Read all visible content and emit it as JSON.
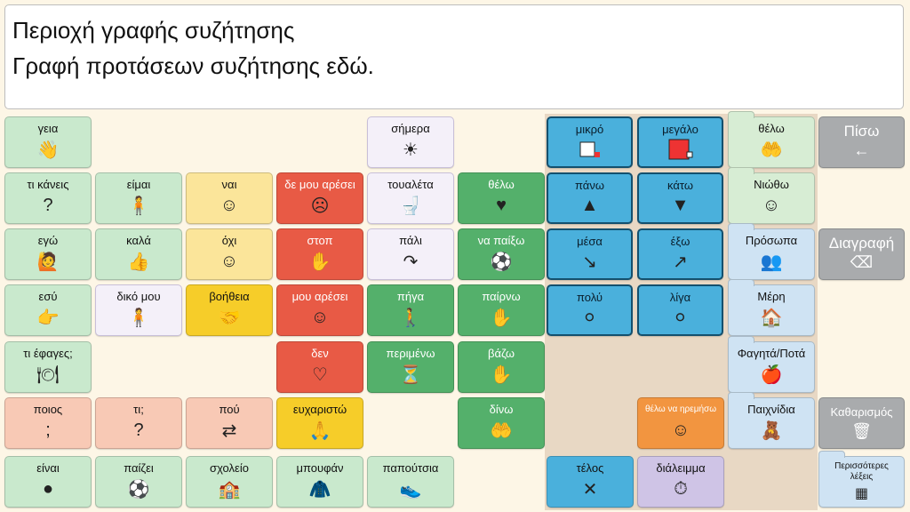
{
  "message_area": {
    "line1": "Περιοχή γραφής συζήτησης",
    "line2": "Γραφή προτάσεων συζήτησης εδώ."
  },
  "cells": [
    {
      "id": "geia",
      "label": "γεια",
      "color": "green-l",
      "icon": "wave-icon",
      "glyph": "👋",
      "col": 0,
      "row": 0
    },
    {
      "id": "simera",
      "label": "σήμερα",
      "color": "white",
      "icon": "sun-icon",
      "glyph": "☀",
      "col": 4,
      "row": 0
    },
    {
      "id": "mikro",
      "label": "μικρό",
      "color": "blue",
      "icon": "small-square-icon",
      "glyph": "■",
      "col": 6,
      "row": 0
    },
    {
      "id": "megalo",
      "label": "μεγάλο",
      "color": "blue",
      "icon": "big-square-icon",
      "glyph": "■",
      "col": 7,
      "row": 0
    },
    {
      "id": "thelo_folder",
      "label": "θέλω",
      "color": "folder-g",
      "icon": "want-icon",
      "glyph": "🤲",
      "col": 8,
      "row": 0,
      "folder": true
    },
    {
      "id": "ti_kaneis",
      "label": "τι κάνεις",
      "color": "green-l",
      "icon": "question-icon",
      "glyph": "?",
      "col": 0,
      "row": 1
    },
    {
      "id": "eimai",
      "label": "είμαι",
      "color": "green-l",
      "icon": "person-icon",
      "glyph": "🧍",
      "col": 1,
      "row": 1
    },
    {
      "id": "nai",
      "label": "ναι",
      "color": "yellow-l",
      "icon": "nod-yes-icon",
      "glyph": "☺",
      "col": 2,
      "row": 1
    },
    {
      "id": "de_mou_aresei",
      "label": "δε μου αρέσει",
      "color": "red",
      "icon": "dislike-face-icon",
      "glyph": "☹",
      "col": 3,
      "row": 1
    },
    {
      "id": "toualeta",
      "label": "τουαλέτα",
      "color": "white",
      "icon": "toilet-icon",
      "glyph": "🚽",
      "col": 4,
      "row": 1
    },
    {
      "id": "thelo",
      "label": "θέλω",
      "color": "green-d",
      "icon": "want-heart-icon",
      "glyph": "♥",
      "col": 5,
      "row": 1
    },
    {
      "id": "pano",
      "label": "πάνω",
      "color": "blue",
      "icon": "up-icon",
      "glyph": "▲",
      "col": 6,
      "row": 1
    },
    {
      "id": "kato",
      "label": "κάτω",
      "color": "blue",
      "icon": "down-icon",
      "glyph": "▼",
      "col": 7,
      "row": 1
    },
    {
      "id": "niotho",
      "label": "Νιώθω",
      "color": "folder-g",
      "icon": "feelings-icon",
      "glyph": "☺",
      "col": 8,
      "row": 1,
      "folder": true
    },
    {
      "id": "ego",
      "label": "εγώ",
      "color": "green-l",
      "icon": "me-icon",
      "glyph": "🙋",
      "col": 0,
      "row": 2
    },
    {
      "id": "kala",
      "label": "καλά",
      "color": "green-l",
      "icon": "thumbs-up-icon",
      "glyph": "👍",
      "col": 1,
      "row": 2
    },
    {
      "id": "ochi",
      "label": "όχι",
      "color": "yellow-l",
      "icon": "shake-no-icon",
      "glyph": "☺",
      "col": 2,
      "row": 2
    },
    {
      "id": "stop",
      "label": "στοπ",
      "color": "red",
      "icon": "stop-hand-icon",
      "glyph": "✋",
      "col": 3,
      "row": 2
    },
    {
      "id": "pali",
      "label": "πάλι",
      "color": "white",
      "icon": "again-arrow-icon",
      "glyph": "↷",
      "col": 4,
      "row": 2
    },
    {
      "id": "na_paixo",
      "label": "να παίξω",
      "color": "green-d",
      "icon": "play-icon",
      "glyph": "⚽",
      "col": 5,
      "row": 2
    },
    {
      "id": "mesa",
      "label": "μέσα",
      "color": "blue",
      "icon": "in-icon",
      "glyph": "↘",
      "col": 6,
      "row": 2
    },
    {
      "id": "exo",
      "label": "έξω",
      "color": "blue",
      "icon": "out-icon",
      "glyph": "↗",
      "col": 7,
      "row": 2
    },
    {
      "id": "prosopa",
      "label": "Πρόσωπα",
      "color": "folder-b",
      "icon": "people-icon",
      "glyph": "👥",
      "col": 8,
      "row": 2,
      "folder": true
    },
    {
      "id": "esy",
      "label": "εσύ",
      "color": "green-l",
      "icon": "you-icon",
      "glyph": "👉",
      "col": 0,
      "row": 3
    },
    {
      "id": "diko_mou",
      "label": "δικό μου",
      "color": "white",
      "icon": "mine-icon",
      "glyph": "🧍",
      "col": 1,
      "row": 3
    },
    {
      "id": "voitheia",
      "label": "βοήθεια",
      "color": "yellow-d",
      "icon": "help-icon",
      "glyph": "🤝",
      "col": 2,
      "row": 3
    },
    {
      "id": "mou_aresei",
      "label": "μου αρέσει",
      "color": "red",
      "icon": "like-face-icon",
      "glyph": "☺",
      "col": 3,
      "row": 3
    },
    {
      "id": "pigа",
      "label": "πήγα",
      "color": "green-d",
      "icon": "went-icon",
      "glyph": "🚶",
      "col": 4,
      "row": 3
    },
    {
      "id": "pairno",
      "label": "παίρνω",
      "color": "green-d",
      "icon": "take-icon",
      "glyph": "✋",
      "col": 5,
      "row": 3
    },
    {
      "id": "poly",
      "label": "πολύ",
      "color": "blue",
      "icon": "many-balls-icon",
      "glyph": "⚪",
      "col": 6,
      "row": 3
    },
    {
      "id": "liga",
      "label": "λίγα",
      "color": "blue",
      "icon": "few-balls-icon",
      "glyph": "⚪",
      "col": 7,
      "row": 3
    },
    {
      "id": "meri",
      "label": "Μέρη",
      "color": "folder-b",
      "icon": "places-icon",
      "glyph": "🏠",
      "col": 8,
      "row": 3,
      "folder": true
    },
    {
      "id": "ti_efages",
      "label": "τι έφαγες;",
      "color": "green-l",
      "icon": "eating-photo-icon",
      "glyph": "🍽",
      "col": 0,
      "row": 4
    },
    {
      "id": "den",
      "label": "δεν",
      "color": "red",
      "icon": "not-heart-icon",
      "glyph": "♡",
      "col": 3,
      "row": 4
    },
    {
      "id": "perimeno",
      "label": "περιμένω",
      "color": "green-d",
      "icon": "wait-icon",
      "glyph": "⏳",
      "col": 4,
      "row": 4
    },
    {
      "id": "vazo",
      "label": "βάζω",
      "color": "green-d",
      "icon": "put-icon",
      "glyph": "✋",
      "col": 5,
      "row": 4
    },
    {
      "id": "fagita",
      "label": "Φαγητά/Ποτά",
      "color": "folder-b",
      "icon": "food-icon",
      "glyph": "🍎",
      "col": 8,
      "row": 4,
      "folder": true
    },
    {
      "id": "poios",
      "label": "ποιος",
      "color": "salmon",
      "icon": "who-icon",
      "glyph": ";",
      "col": 0,
      "row": 5
    },
    {
      "id": "ti",
      "label": "τι;",
      "color": "salmon",
      "icon": "what-icon",
      "glyph": "?",
      "col": 1,
      "row": 5
    },
    {
      "id": "pou",
      "label": "πού",
      "color": "salmon",
      "icon": "where-sign-icon",
      "glyph": "⇄",
      "col": 2,
      "row": 5
    },
    {
      "id": "efcharisto",
      "label": "ευχαριστώ",
      "color": "yellow-d",
      "icon": "thanks-icon",
      "glyph": "🙏",
      "col": 3,
      "row": 5
    },
    {
      "id": "dino",
      "label": "δίνω",
      "color": "green-d",
      "icon": "give-icon",
      "glyph": "🤲",
      "col": 5,
      "row": 5
    },
    {
      "id": "thelo_na_iremiso",
      "label": "θέλω να ηρεμήσω",
      "color": "orange",
      "icon": "calm-face-icon",
      "glyph": "☺",
      "col": 7,
      "row": 5
    },
    {
      "id": "paichnidia",
      "label": "Παιχνίδια",
      "color": "folder-b",
      "icon": "toys-icon",
      "glyph": "🧸",
      "col": 8,
      "row": 5,
      "folder": true
    },
    {
      "id": "einai",
      "label": "είναι",
      "color": "green-l",
      "icon": "is-icon",
      "glyph": "●",
      "col": 0,
      "row": 6
    },
    {
      "id": "paizei",
      "label": "παίζει",
      "color": "green-l",
      "icon": "plays-icon",
      "glyph": "⚽",
      "col": 1,
      "row": 6
    },
    {
      "id": "scholeio",
      "label": "σχολείο",
      "color": "green-l",
      "icon": "school-icon",
      "glyph": "🏫",
      "col": 2,
      "row": 6
    },
    {
      "id": "boufan",
      "label": "μπουφάν",
      "color": "green-l",
      "icon": "jacket-icon",
      "glyph": "🧥",
      "col": 3,
      "row": 6
    },
    {
      "id": "papoutsia",
      "label": "παπούτσια",
      "color": "green-l",
      "icon": "shoes-icon",
      "glyph": "👟",
      "col": 4,
      "row": 6
    },
    {
      "id": "telos",
      "label": "τέλος",
      "color": "blue2",
      "icon": "finished-icon",
      "glyph": "✕",
      "col": 6,
      "row": 6
    },
    {
      "id": "dialeimma",
      "label": "διάλειμμα",
      "color": "purple",
      "icon": "stopwatch-icon",
      "glyph": "⏱",
      "col": 7,
      "row": 6
    }
  ],
  "actions": {
    "back": {
      "label": "Πίσω",
      "icon": "back-arrow-icon",
      "glyph": "←"
    },
    "delete": {
      "label": "Διαγραφή",
      "icon": "delete-icon",
      "glyph": "⌫"
    },
    "clear": {
      "label": "Καθαρισμός",
      "icon": "trash-icon",
      "glyph": "🗑"
    },
    "more": {
      "label": "Περισσότερες λέξεις",
      "icon": "more-words-icon",
      "glyph": "▦"
    }
  }
}
